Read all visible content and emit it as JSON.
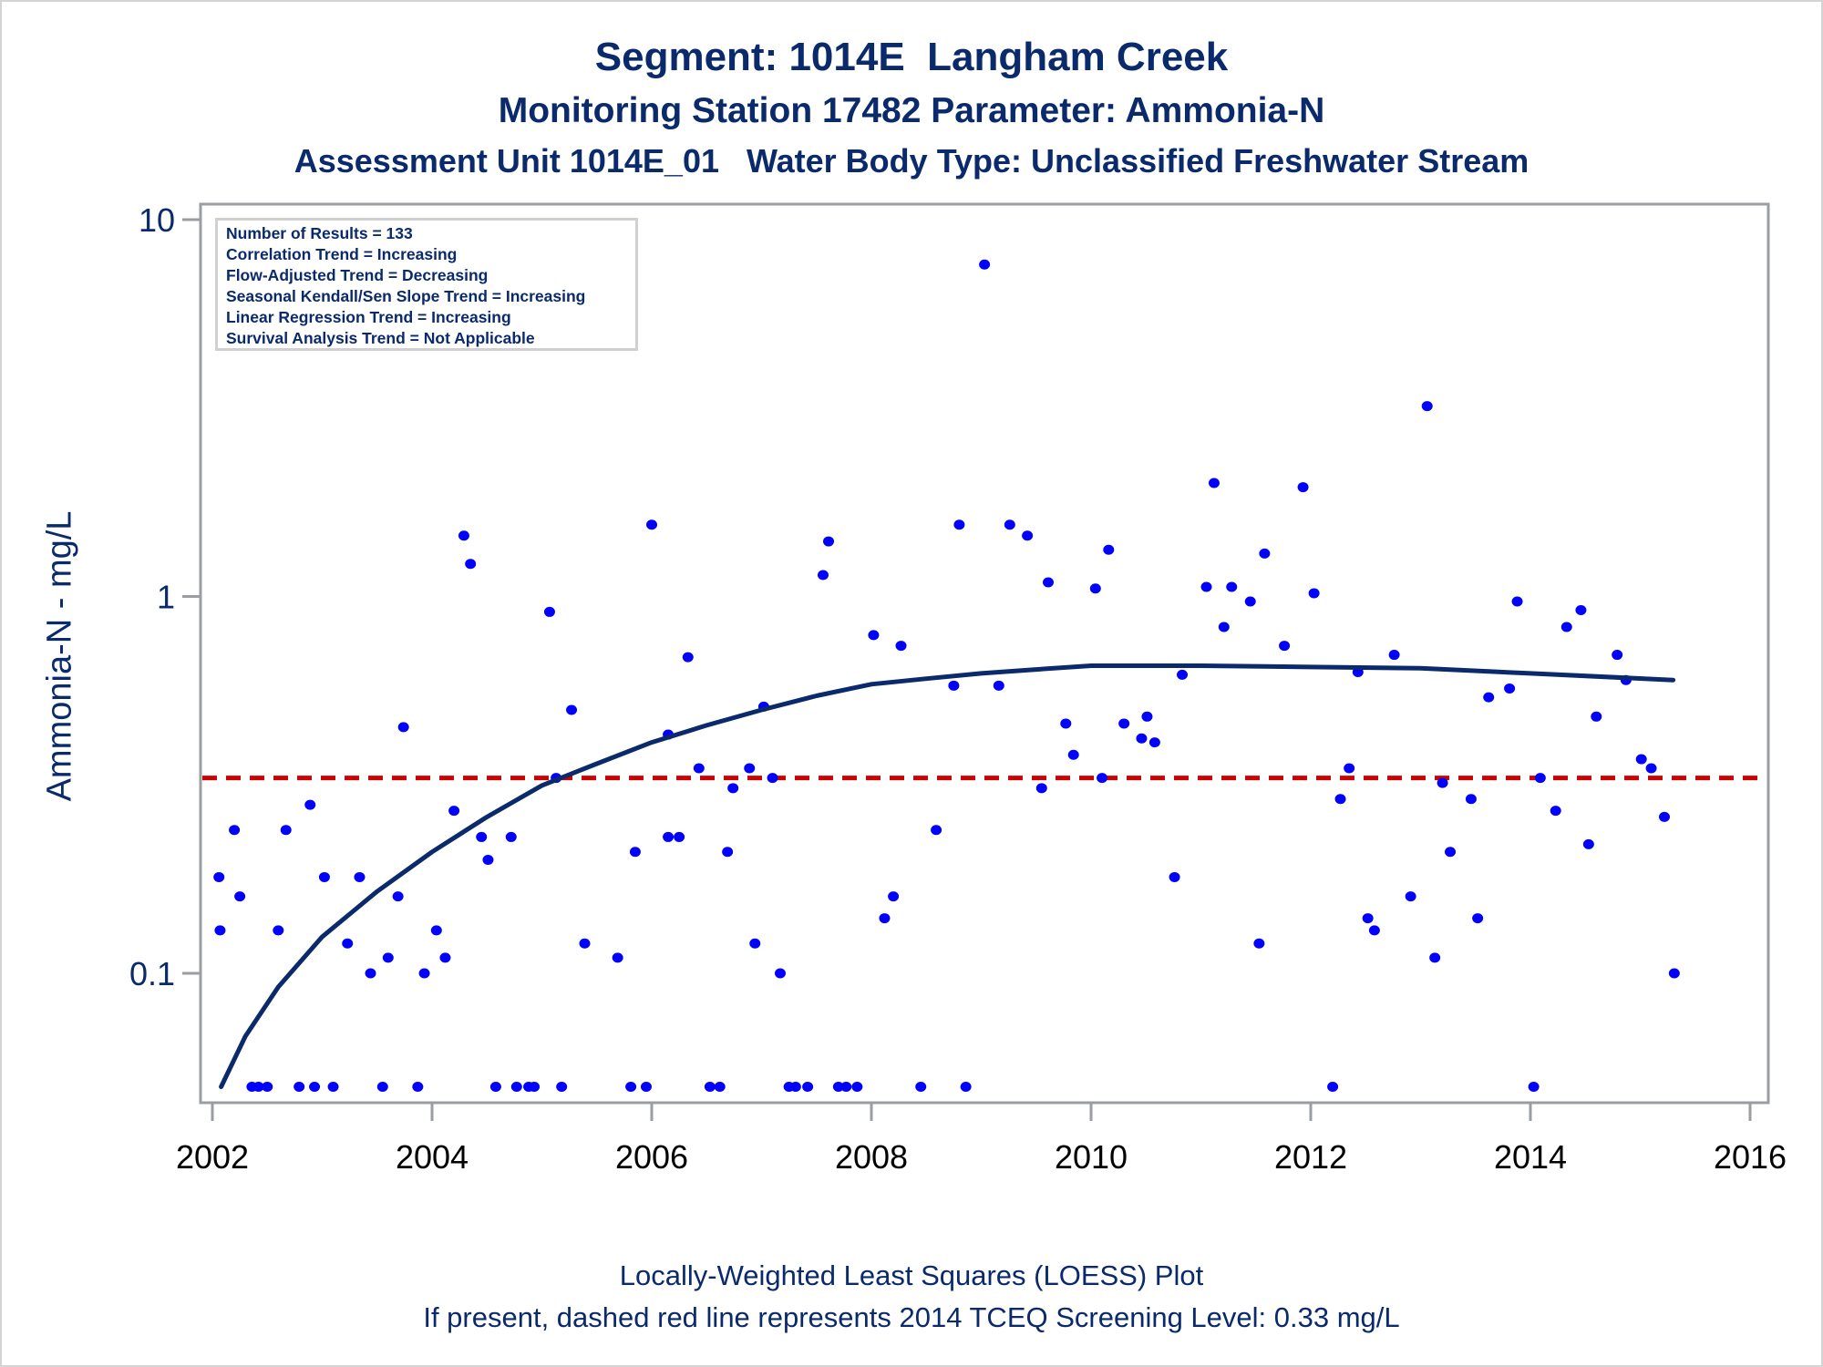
{
  "titles": {
    "line1": "Segment: 1014E  Langham Creek",
    "line2": "Monitoring Station 17482 Parameter: Ammonia-N",
    "line3": "Assessment Unit 1014E_01   Water Body Type: Unclassified Freshwater Stream"
  },
  "legend": [
    "Number of Results = 133",
    "Correlation Trend = Increasing",
    "Flow-Adjusted Trend = Decreasing",
    "Seasonal Kendall/Sen Slope Trend = Increasing",
    "Linear Regression Trend = Increasing",
    "Survival Analysis Trend = Not Applicable"
  ],
  "footnotes": {
    "line1": "Locally-Weighted Least Squares (LOESS) Plot",
    "line2": "If present, dashed red line represents 2014 TCEQ Screening Level: 0.33 mg/L"
  },
  "colors": {
    "text": "#0b2a6b",
    "points": "#0000ff",
    "loess": "#0b2a6b",
    "screening": "#cc0000",
    "axis": "#9a9ea3"
  },
  "chart_data": {
    "type": "scatter",
    "title": "Segment: 1014E  Langham Creek",
    "xlabel": "",
    "ylabel": "Ammonia-N - mg/L",
    "xlim": [
      2002,
      2016
    ],
    "ylim": [
      0.045,
      10
    ],
    "yscale": "log",
    "xticks": [
      2002,
      2004,
      2006,
      2008,
      2010,
      2012,
      2014,
      2016
    ],
    "yticks": [
      {
        "value": 0.1,
        "label": "0.1"
      },
      {
        "value": 1,
        "label": "1"
      },
      {
        "value": 10,
        "label": "10"
      }
    ],
    "grid": false,
    "legend_placement": "top-left",
    "screening_level": {
      "value": 0.33,
      "label": "2014 TCEQ Screening Level: 0.33 mg/L",
      "style": "dashed"
    },
    "series": [
      {
        "name": "Ammonia-N results",
        "points": [
          [
            2002.36,
            0.05
          ],
          [
            2002.42,
            0.05
          ],
          [
            2002.5,
            0.05
          ],
          [
            2002.79,
            0.05
          ],
          [
            2002.93,
            0.05
          ],
          [
            2003.1,
            0.05
          ],
          [
            2003.55,
            0.05
          ],
          [
            2003.87,
            0.05
          ],
          [
            2004.58,
            0.05
          ],
          [
            2004.77,
            0.05
          ],
          [
            2004.88,
            0.05
          ],
          [
            2004.93,
            0.05
          ],
          [
            2005.18,
            0.05
          ],
          [
            2005.81,
            0.05
          ],
          [
            2005.95,
            0.05
          ],
          [
            2006.53,
            0.05
          ],
          [
            2006.62,
            0.05
          ],
          [
            2007.25,
            0.05
          ],
          [
            2007.31,
            0.05
          ],
          [
            2007.42,
            0.05
          ],
          [
            2007.7,
            0.05
          ],
          [
            2007.77,
            0.05
          ],
          [
            2007.87,
            0.05
          ],
          [
            2008.45,
            0.05
          ],
          [
            2008.86,
            0.05
          ],
          [
            2012.2,
            0.05
          ],
          [
            2014.03,
            0.05
          ],
          [
            2002.06,
            0.18
          ],
          [
            2002.07,
            0.13
          ],
          [
            2002.2,
            0.24
          ],
          [
            2002.25,
            0.16
          ],
          [
            2002.6,
            0.13
          ],
          [
            2002.67,
            0.24
          ],
          [
            2002.89,
            0.28
          ],
          [
            2003.02,
            0.18
          ],
          [
            2003.23,
            0.12
          ],
          [
            2003.34,
            0.18
          ],
          [
            2003.44,
            0.1
          ],
          [
            2003.6,
            0.11
          ],
          [
            2003.69,
            0.16
          ],
          [
            2003.74,
            0.45
          ],
          [
            2003.93,
            0.1
          ],
          [
            2004.04,
            0.13
          ],
          [
            2004.12,
            0.11
          ],
          [
            2004.2,
            0.27
          ],
          [
            2004.29,
            1.45
          ],
          [
            2004.35,
            1.22
          ],
          [
            2004.45,
            0.23
          ],
          [
            2004.51,
            0.2
          ],
          [
            2004.72,
            0.23
          ],
          [
            2005.07,
            0.91
          ],
          [
            2005.13,
            0.33
          ],
          [
            2005.27,
            0.5
          ],
          [
            2005.39,
            0.12
          ],
          [
            2005.69,
            0.11
          ],
          [
            2005.85,
            0.21
          ],
          [
            2006.0,
            1.55
          ],
          [
            2006.15,
            0.43
          ],
          [
            2006.15,
            0.23
          ],
          [
            2006.25,
            0.23
          ],
          [
            2006.33,
            0.69
          ],
          [
            2006.43,
            0.35
          ],
          [
            2006.69,
            0.21
          ],
          [
            2006.74,
            0.31
          ],
          [
            2006.89,
            0.35
          ],
          [
            2006.94,
            0.12
          ],
          [
            2007.02,
            0.51
          ],
          [
            2007.1,
            0.33
          ],
          [
            2007.17,
            0.1
          ],
          [
            2007.56,
            1.14
          ],
          [
            2007.61,
            1.4
          ],
          [
            2008.02,
            0.79
          ],
          [
            2008.12,
            0.14
          ],
          [
            2008.2,
            0.16
          ],
          [
            2008.27,
            0.74
          ],
          [
            2008.59,
            0.24
          ],
          [
            2008.75,
            0.58
          ],
          [
            2008.8,
            1.55
          ],
          [
            2009.03,
            7.6
          ],
          [
            2009.16,
            0.58
          ],
          [
            2009.26,
            1.55
          ],
          [
            2009.42,
            1.45
          ],
          [
            2009.55,
            0.31
          ],
          [
            2009.61,
            1.09
          ],
          [
            2009.77,
            0.46
          ],
          [
            2009.84,
            0.38
          ],
          [
            2010.04,
            1.05
          ],
          [
            2010.1,
            0.33
          ],
          [
            2010.16,
            1.33
          ],
          [
            2010.3,
            0.46
          ],
          [
            2010.46,
            0.42
          ],
          [
            2010.51,
            0.48
          ],
          [
            2010.58,
            0.41
          ],
          [
            2010.76,
            0.18
          ],
          [
            2010.83,
            0.62
          ],
          [
            2011.05,
            1.06
          ],
          [
            2011.12,
            2.0
          ],
          [
            2011.21,
            0.83
          ],
          [
            2011.28,
            1.06
          ],
          [
            2011.45,
            0.97
          ],
          [
            2011.53,
            0.12
          ],
          [
            2011.58,
            1.3
          ],
          [
            2011.76,
            0.74
          ],
          [
            2011.93,
            1.95
          ],
          [
            2012.03,
            1.02
          ],
          [
            2012.27,
            0.29
          ],
          [
            2012.35,
            0.35
          ],
          [
            2012.43,
            0.63
          ],
          [
            2012.52,
            0.14
          ],
          [
            2012.58,
            0.13
          ],
          [
            2012.76,
            0.7
          ],
          [
            2012.91,
            0.16
          ],
          [
            2013.06,
            3.2
          ],
          [
            2013.13,
            0.11
          ],
          [
            2013.2,
            0.32
          ],
          [
            2013.27,
            0.21
          ],
          [
            2013.46,
            0.29
          ],
          [
            2013.52,
            0.14
          ],
          [
            2013.62,
            0.54
          ],
          [
            2013.81,
            0.57
          ],
          [
            2013.88,
            0.97
          ],
          [
            2014.09,
            0.33
          ],
          [
            2014.23,
            0.27
          ],
          [
            2014.33,
            0.83
          ],
          [
            2014.46,
            0.92
          ],
          [
            2014.53,
            0.22
          ],
          [
            2014.6,
            0.48
          ],
          [
            2014.79,
            0.7
          ],
          [
            2014.87,
            0.6
          ],
          [
            2015.01,
            0.37
          ],
          [
            2015.1,
            0.35
          ],
          [
            2015.22,
            0.26
          ],
          [
            2015.31,
            0.1
          ]
        ]
      },
      {
        "name": "LOESS",
        "points": [
          [
            2002.08,
            0.05
          ],
          [
            2002.3,
            0.068
          ],
          [
            2002.6,
            0.092
          ],
          [
            2003.0,
            0.125
          ],
          [
            2003.5,
            0.165
          ],
          [
            2004.0,
            0.21
          ],
          [
            2004.5,
            0.26
          ],
          [
            2005.0,
            0.315
          ],
          [
            2005.5,
            0.36
          ],
          [
            2006.0,
            0.41
          ],
          [
            2006.5,
            0.455
          ],
          [
            2007.0,
            0.5
          ],
          [
            2007.5,
            0.545
          ],
          [
            2008.0,
            0.585
          ],
          [
            2008.5,
            0.605
          ],
          [
            2009.0,
            0.625
          ],
          [
            2009.5,
            0.64
          ],
          [
            2010.0,
            0.655
          ],
          [
            2011.0,
            0.655
          ],
          [
            2012.0,
            0.65
          ],
          [
            2013.0,
            0.645
          ],
          [
            2014.0,
            0.625
          ],
          [
            2015.3,
            0.6
          ]
        ]
      }
    ]
  }
}
